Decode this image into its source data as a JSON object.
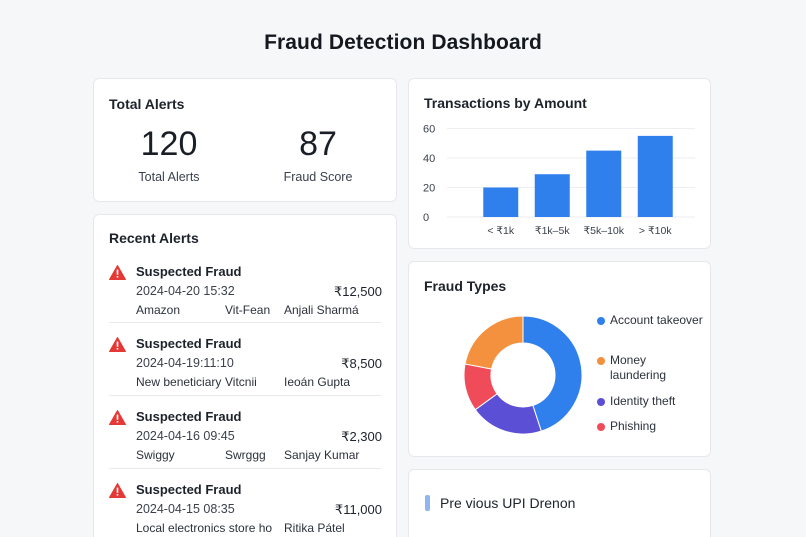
{
  "page_title": "Fraud Detection Dashboard",
  "colors": {
    "accent": "#2f80ed",
    "warning": "#e53935",
    "card_bg": "#ffffff",
    "page_bg": "#f6f7f9"
  },
  "totals": {
    "title": "Total Alerts",
    "stats": [
      {
        "value": "120",
        "label": "Total Alerts"
      },
      {
        "value": "87",
        "label": "Fraud Score"
      }
    ]
  },
  "recent": {
    "title": "Recent Alerts",
    "alerts": [
      {
        "icon": "warning-icon",
        "title": "Suspected Fraud",
        "time": "2024-04-20 15:32",
        "amount": "₹12,500",
        "merchant": "Amazon",
        "method": "Vit-Fean",
        "customer": "Anjali Sharmá"
      },
      {
        "icon": "warning-icon",
        "title": "Suspected Fraud",
        "time": "2024-04-19:11:10",
        "amount": "₹8,500",
        "merchant": "New beneticiary",
        "method": "Vitcnii",
        "customer": "Ieoán Gupta"
      },
      {
        "icon": "warning-icon",
        "title": "Suspected Fraud",
        "time": "2024-04-16 09:45",
        "amount": "₹2,300",
        "merchant": "Swiggy",
        "method": "Swrggg",
        "customer": "Sanjay Kumar"
      },
      {
        "icon": "warning-icon",
        "title": "Suspected Fraud",
        "time": "2024-04-15 08:35",
        "amount": "₹11,000",
        "merchant": "Local electronics store ho",
        "method": "",
        "customer": "Ritika Pátel"
      }
    ]
  },
  "upi": {
    "label": "Pre vious UPI Drenon"
  },
  "chart_data": [
    {
      "type": "bar",
      "title": "Transactions by Amount",
      "categories": [
        "< ₹1k",
        "₹1k–5k",
        "₹5k–10k",
        "> ₹10k"
      ],
      "values": [
        20,
        29,
        45,
        55
      ],
      "yticks": [
        "0",
        "20",
        "40",
        "60"
      ],
      "ylim": [
        0,
        60
      ],
      "grid": true,
      "color": "#2f80ed"
    },
    {
      "type": "pie",
      "title": "Fraud Types",
      "donut": true,
      "legend": "right",
      "slices": [
        {
          "name": "Account takeover",
          "value": 45,
          "color": "#2f80ed"
        },
        {
          "name": "Identity theft",
          "value": 20,
          "color": "#5b4fd6"
        },
        {
          "name": "Phishing",
          "value": 13,
          "color": "#ef4b59"
        },
        {
          "name": "Money laundering",
          "value": 22,
          "color": "#f4913e"
        }
      ],
      "legend_order": [
        0,
        3,
        1,
        2
      ]
    }
  ]
}
